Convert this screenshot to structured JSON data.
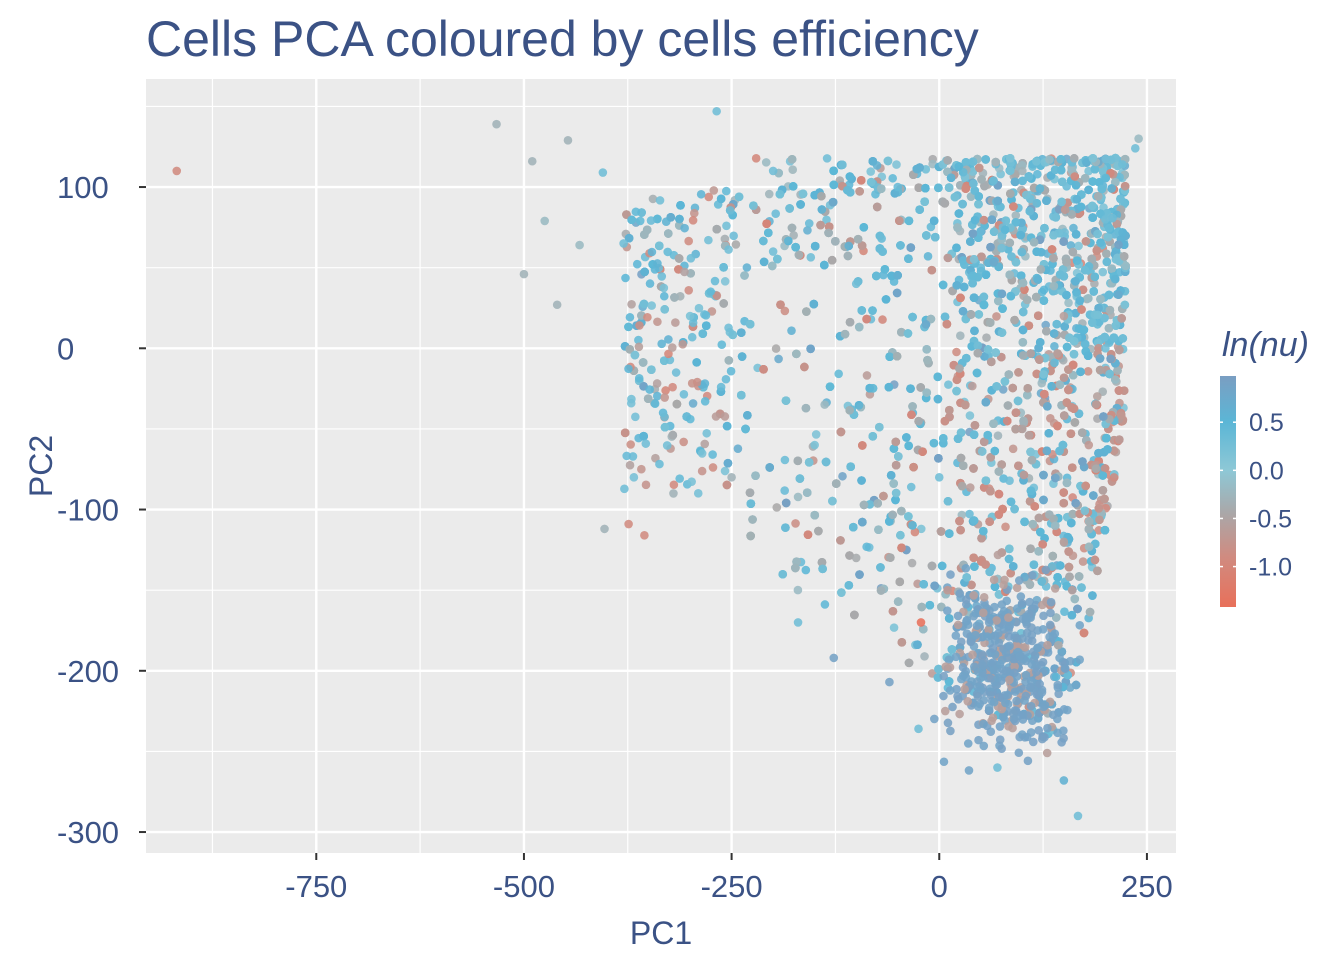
{
  "chart_data": {
    "type": "scatter",
    "title": "Cells PCA coloured by cells efficiency",
    "xlabel": "PC1",
    "ylabel": "PC2",
    "xlim": [
      -955,
      285
    ],
    "ylim": [
      -313,
      167
    ],
    "x_ticks": [
      -750,
      -500,
      -250,
      0,
      250
    ],
    "x_tick_labels": [
      "-750",
      "-500",
      "-250",
      "0",
      "250"
    ],
    "y_ticks": [
      100,
      0,
      -100,
      -200,
      -300
    ],
    "y_tick_labels": [
      "100",
      "0",
      "-100",
      "-200",
      "-300"
    ],
    "grid": true,
    "legend": {
      "title": "ln(nu)",
      "placement": "right",
      "range": [
        -1.42,
        0.98
      ],
      "ticks": [
        0.5,
        0.0,
        -0.5,
        -1.0
      ],
      "tick_labels": [
        "0.5",
        "0.0",
        "-0.5",
        "-1.0"
      ],
      "colors": [
        {
          "value": -1.42,
          "color": "#e8705a"
        },
        {
          "value": -0.9,
          "color": "#d08b80"
        },
        {
          "value": -0.45,
          "color": "#aaa7a8"
        },
        {
          "value": 0.0,
          "color": "#8ec8d6"
        },
        {
          "value": 0.5,
          "color": "#5bb6d6"
        },
        {
          "value": 0.98,
          "color": "#7a9ec2"
        }
      ]
    },
    "series": [
      {
        "name": "cells",
        "points_note": "approximately 5000 cells; representative points listed, bulk cloud spans PC1 -380..230, PC2 -290..145",
        "points": [
          {
            "x": -918,
            "y": 110,
            "value": -0.9
          },
          {
            "x": -533,
            "y": 139,
            "value": -0.3
          },
          {
            "x": -500,
            "y": 46,
            "value": -0.3
          },
          {
            "x": -490,
            "y": 116,
            "value": -0.3
          },
          {
            "x": -475,
            "y": 79,
            "value": -0.2
          },
          {
            "x": -460,
            "y": 27,
            "value": -0.3
          },
          {
            "x": -447,
            "y": 129,
            "value": -0.3
          },
          {
            "x": -433,
            "y": 64,
            "value": -0.2
          },
          {
            "x": -405,
            "y": 109,
            "value": 0.3
          },
          {
            "x": -403,
            "y": -112,
            "value": -0.3
          },
          {
            "x": -380,
            "y": 65,
            "value": 0.3
          },
          {
            "x": -374,
            "y": -109,
            "value": -0.9
          },
          {
            "x": -355,
            "y": -116,
            "value": -0.9
          },
          {
            "x": -268,
            "y": 147,
            "value": 0.3
          },
          {
            "x": 240,
            "y": 130,
            "value": -0.2
          },
          {
            "x": 236,
            "y": 124,
            "value": 0.3
          },
          {
            "x": -22,
            "y": -170,
            "value": -1.4
          },
          {
            "x": 167,
            "y": -290,
            "value": 0.3
          },
          {
            "x": 70,
            "y": -260,
            "value": 0.3
          },
          {
            "x": 150,
            "y": -268,
            "value": 0.6
          },
          {
            "x": -127,
            "y": -192,
            "value": 0.9
          },
          {
            "x": -60,
            "y": -207,
            "value": 0.9
          },
          {
            "x": -25,
            "y": -236,
            "value": 0.3
          },
          {
            "x": 80,
            "y": -200,
            "value": 0.9
          },
          {
            "x": 100,
            "y": -180,
            "value": 0.9
          },
          {
            "x": 60,
            "y": -170,
            "value": 0.9
          },
          {
            "x": 110,
            "y": -210,
            "value": 0.9
          },
          {
            "x": 90,
            "y": -230,
            "value": 0.9
          },
          {
            "x": 40,
            "y": -190,
            "value": -0.6
          },
          {
            "x": 10,
            "y": -150,
            "value": -0.7
          },
          {
            "x": 160,
            "y": -150,
            "value": -0.6
          },
          {
            "x": 180,
            "y": -60,
            "value": -0.7
          },
          {
            "x": 150,
            "y": 20,
            "value": -0.6
          },
          {
            "x": 200,
            "y": 80,
            "value": 0.3
          },
          {
            "x": 50,
            "y": 50,
            "value": 0.4
          },
          {
            "x": -100,
            "y": 40,
            "value": 0.3
          },
          {
            "x": -200,
            "y": 60,
            "value": 0.3
          },
          {
            "x": -150,
            "y": -60,
            "value": 0.2
          },
          {
            "x": -250,
            "y": -80,
            "value": -0.3
          },
          {
            "x": -300,
            "y": 20,
            "value": 0.2
          },
          {
            "x": -320,
            "y": -90,
            "value": -0.3
          },
          {
            "x": -100,
            "y": -130,
            "value": -0.4
          },
          {
            "x": 0,
            "y": -80,
            "value": 0.3
          },
          {
            "x": 100,
            "y": -50,
            "value": -0.5
          },
          {
            "x": 200,
            "y": 0,
            "value": 0.3
          },
          {
            "x": -50,
            "y": 100,
            "value": 0.4
          },
          {
            "x": 100,
            "y": 110,
            "value": -0.3
          },
          {
            "x": -200,
            "y": 110,
            "value": 0.3
          },
          {
            "x": 150,
            "y": -120,
            "value": -0.6
          },
          {
            "x": -170,
            "y": -170,
            "value": 0.3
          }
        ]
      }
    ]
  }
}
